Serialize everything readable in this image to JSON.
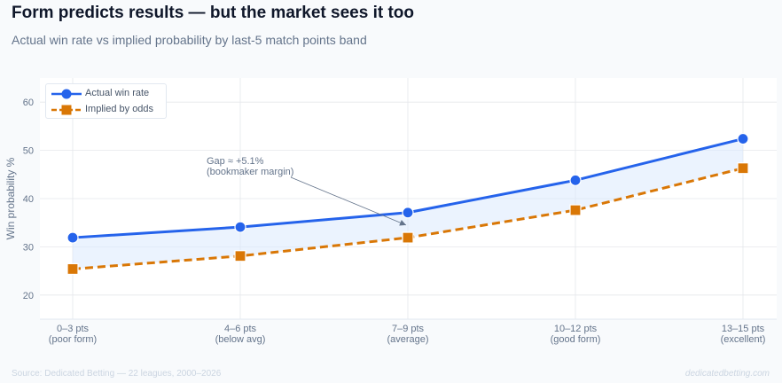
{
  "title": "Form predicts results — but the market sees it too",
  "subtitle": "Actual win rate vs implied probability by last-5 match points band",
  "footer": {
    "source": "Source: Dedicated Betting — 22 leagues, 2000–2026",
    "brand": "dedicatedbetting.com"
  },
  "colors": {
    "actual": "#2563eb",
    "implied": "#d97706",
    "gap_fill": "#dbeafe",
    "grid": "#e5e7eb",
    "tick_text": "#64748b",
    "annotation": "#64748b"
  },
  "chart_data": {
    "type": "line",
    "categories": [
      [
        "0–3 pts",
        "(poor form)"
      ],
      [
        "4–6 pts",
        "(below avg)"
      ],
      [
        "7–9 pts",
        "(average)"
      ],
      [
        "10–12 pts",
        "(good form)"
      ],
      [
        "13–15 pts",
        "(excellent)"
      ]
    ],
    "series": [
      {
        "name": "Actual win rate",
        "values": [
          31.9,
          34.1,
          37.1,
          43.8,
          52.4
        ],
        "marker": "circle",
        "line": "solid"
      },
      {
        "name": "Implied by odds",
        "values": [
          25.4,
          28.1,
          31.9,
          37.6,
          46.3
        ],
        "marker": "square",
        "line": "dashed"
      }
    ],
    "ylabel": "Win probability %",
    "xlabel": "",
    "ylim": [
      15,
      65
    ],
    "yticks": [
      20,
      30,
      40,
      50,
      60
    ],
    "grid": true,
    "legend_position": "top-left",
    "gap_shaded": true,
    "annotation": {
      "lines": [
        "Gap ≈ +5.1%",
        "(bookmaker margin)"
      ],
      "target_category_index": 2,
      "target_value": 34.5
    }
  }
}
